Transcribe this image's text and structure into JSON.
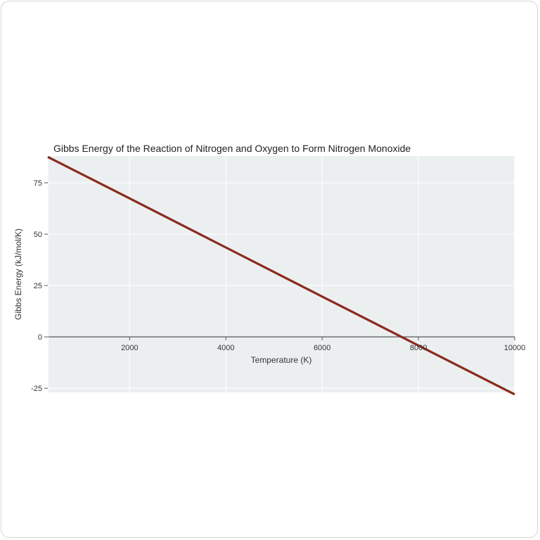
{
  "chart_data": {
    "type": "line",
    "title": "Gibbs Energy of the Reaction of Nitrogen and Oxygen to Form Nitrogen Monoxide",
    "xlabel": "Temperature (K)",
    "ylabel": "Gibbs Energy (kJ/mol/K)",
    "xlim": [
      300,
      10000
    ],
    "ylim": [
      -27,
      88
    ],
    "x_ticks": [
      2000,
      4000,
      6000,
      8000,
      10000
    ],
    "y_ticks": [
      -25,
      0,
      25,
      50,
      75
    ],
    "grid": true,
    "legend": "none",
    "series": [
      {
        "x": [
          300,
          2000,
          4000,
          6000,
          7600,
          8000,
          10000
        ],
        "y": [
          87.6,
          67.4,
          43.5,
          19.6,
          0.6,
          -4.2,
          -28.0
        ],
        "color": "#8b2a1f"
      }
    ]
  }
}
